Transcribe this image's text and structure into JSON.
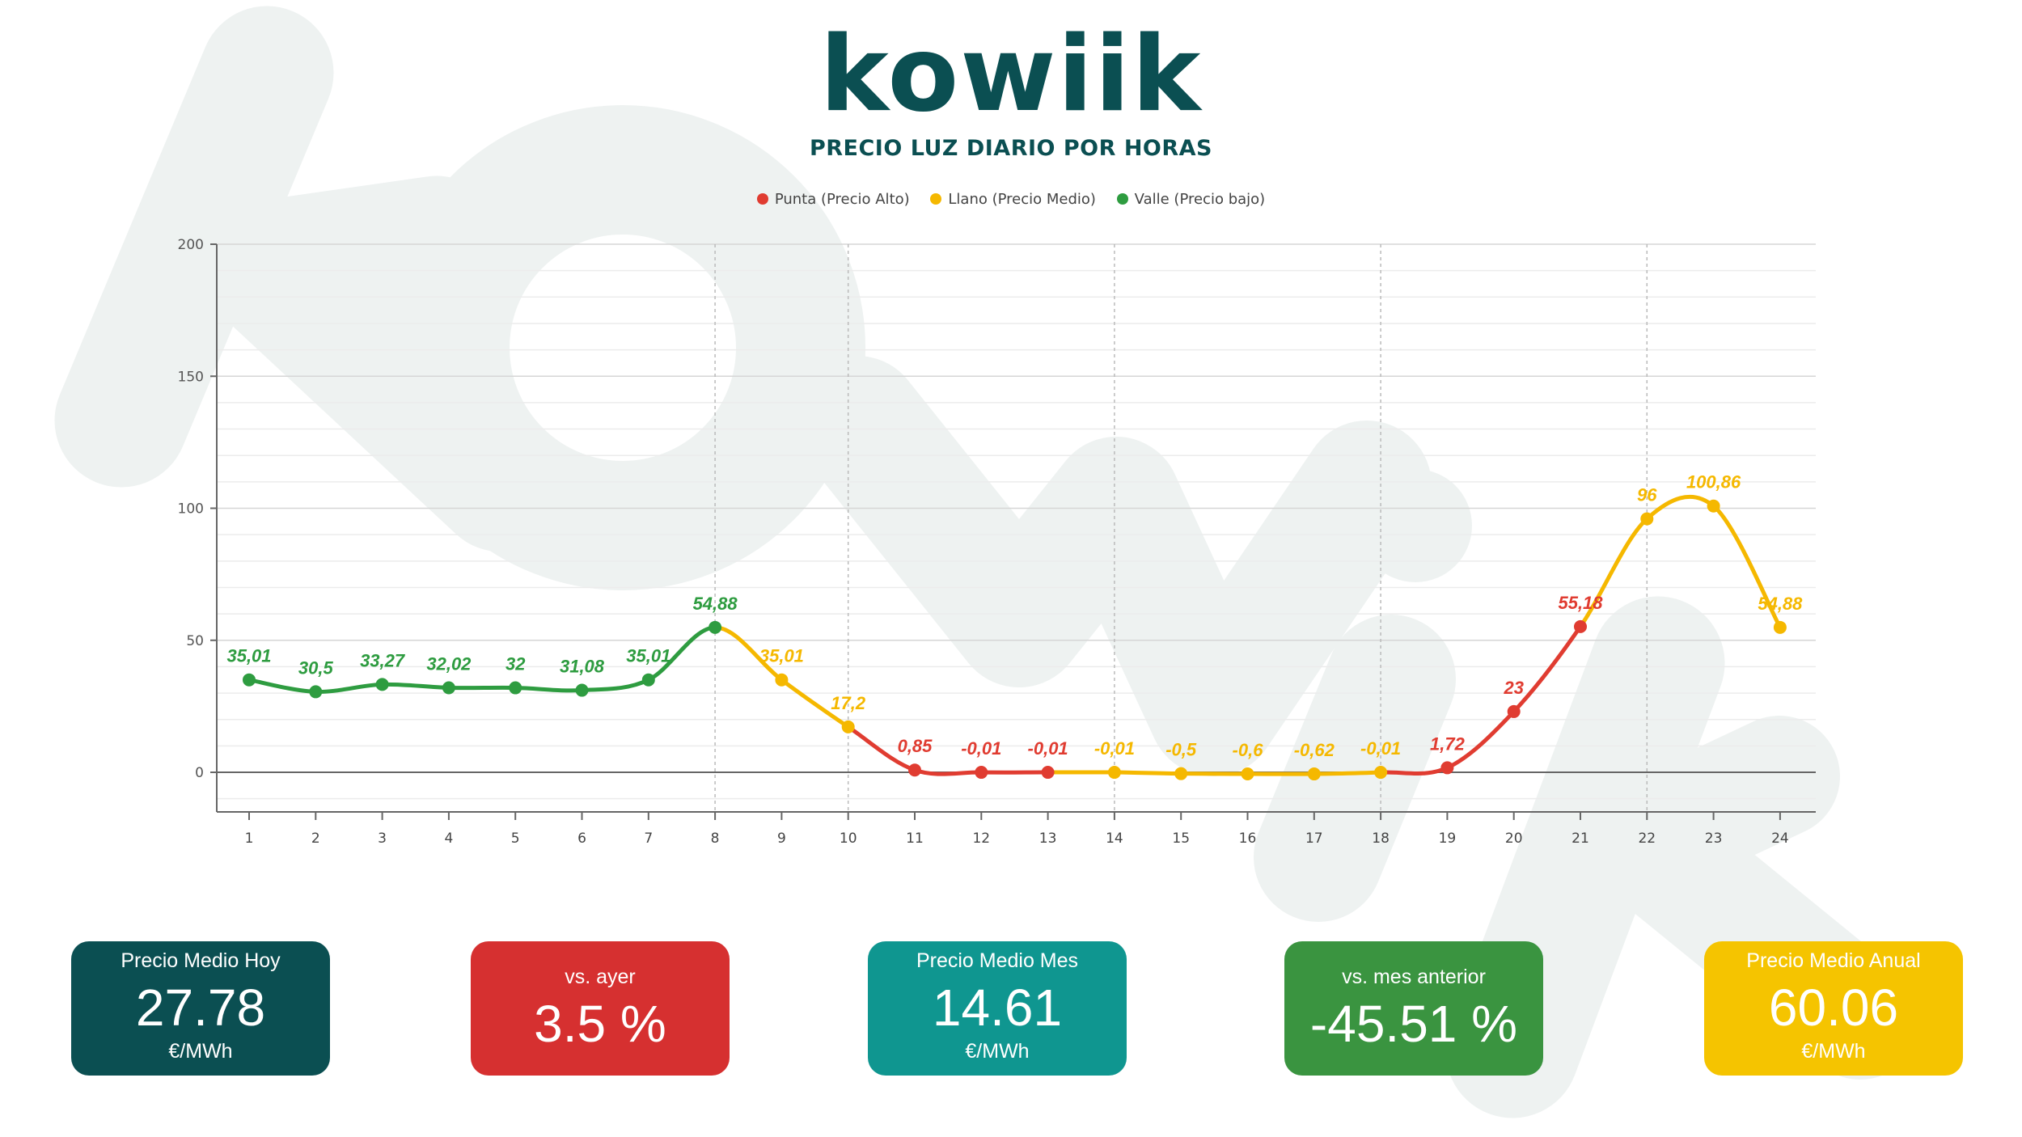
{
  "logo": {
    "text": "kowiik"
  },
  "chart_data": {
    "type": "line",
    "title": "PRECIO LUZ DIARIO POR HORAS",
    "xlabel": "",
    "ylabel": "",
    "x": [
      1,
      2,
      3,
      4,
      5,
      6,
      7,
      8,
      9,
      10,
      11,
      12,
      13,
      14,
      15,
      16,
      17,
      18,
      19,
      20,
      21,
      22,
      23,
      24
    ],
    "values": [
      35.01,
      30.5,
      33.27,
      32.02,
      32,
      31.08,
      35.01,
      54.88,
      35.01,
      17.2,
      0.85,
      -0.01,
      -0.01,
      -0.01,
      -0.5,
      -0.6,
      -0.62,
      -0.01,
      1.72,
      23,
      55.18,
      96,
      100.86,
      54.88
    ],
    "data_labels": [
      "35,01",
      "30,5",
      "33,27",
      "32,02",
      "32",
      "31,08",
      "35,01",
      "54,88",
      "35,01",
      "17,2",
      "0,85",
      "-0,01",
      "-0,01",
      "-0,01",
      "-0,5",
      "-0,6",
      "-0,62",
      "-0,01",
      "1,72",
      "23",
      "55,18",
      "96",
      "100,86",
      "54,88"
    ],
    "point_period": [
      "valle",
      "valle",
      "valle",
      "valle",
      "valle",
      "valle",
      "valle",
      "valle",
      "llano",
      "llano",
      "punta",
      "punta",
      "punta",
      "llano",
      "llano",
      "llano",
      "llano",
      "llano",
      "punta",
      "punta",
      "punta",
      "llano",
      "llano",
      "llano"
    ],
    "ylim": [
      -15,
      200
    ],
    "y_ticks": [
      0,
      50,
      100,
      150,
      200
    ],
    "x_ticks": [
      "1",
      "2",
      "3",
      "4",
      "5",
      "6",
      "7",
      "8",
      "9",
      "10",
      "11",
      "12",
      "13",
      "14",
      "15",
      "16",
      "17",
      "18",
      "19",
      "20",
      "21",
      "22",
      "23",
      "24"
    ],
    "vertical_gridlines_at": [
      8,
      10,
      14,
      18,
      22
    ],
    "grid": true,
    "legend_position": "top-center",
    "legend": [
      {
        "key": "punta",
        "label": "Punta (Precio Alto)",
        "color": "#e03c31"
      },
      {
        "key": "llano",
        "label": "Llano (Precio Medio)",
        "color": "#f5b800"
      },
      {
        "key": "valle",
        "label": "Valle (Precio bajo)",
        "color": "#2e9c40"
      }
    ]
  },
  "cards": [
    {
      "title": "Precio Medio Hoy",
      "value": "27.78",
      "unit": "€/MWh",
      "color": "#0b4f52"
    },
    {
      "title": "vs. ayer",
      "value": "3.5 %",
      "unit": "",
      "color": "#d63030"
    },
    {
      "title": "Precio Medio Mes",
      "value": "14.61",
      "unit": "€/MWh",
      "color": "#0f9690"
    },
    {
      "title": "vs. mes anterior",
      "value": "-45.51 %",
      "unit": "",
      "color": "#3a9440"
    },
    {
      "title": "Precio Medio Anual",
      "value": "60.06",
      "unit": "€/MWh",
      "color": "#f5c400"
    }
  ]
}
